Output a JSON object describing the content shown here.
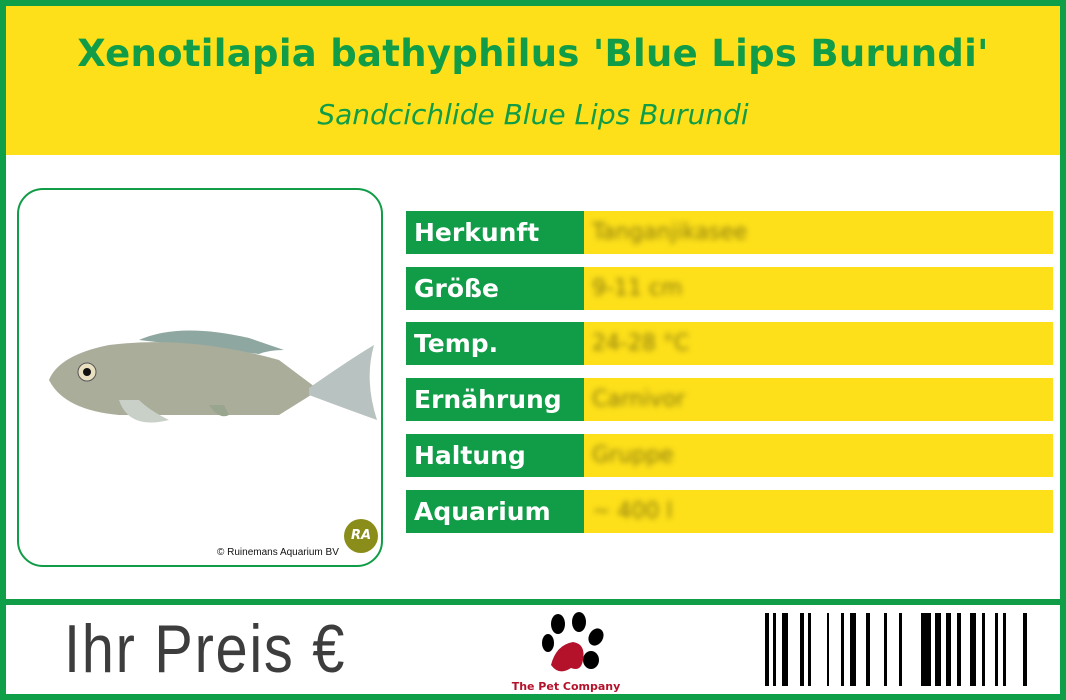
{
  "header": {
    "title": "Xenotilapia bathyphilus 'Blue Lips Burundi'",
    "subtitle": "Sandcichlide Blue Lips Burundi"
  },
  "photo": {
    "credit": "© Ruinemans Aquarium BV",
    "logo_text": "RA"
  },
  "specs": [
    {
      "label": "Herkunft",
      "value": "Tanganjikasee"
    },
    {
      "label": "Größe",
      "value": "9-11 cm"
    },
    {
      "label": "Temp.",
      "value": "24-28 °C"
    },
    {
      "label": "Ernährung",
      "value": "Carnivor"
    },
    {
      "label": "Haltung",
      "value": "Gruppe"
    },
    {
      "label": "Aquarium",
      "value": "~ 400 l"
    }
  ],
  "footer": {
    "price_label": "Ihr Preis €",
    "brand": "The Pet Company"
  },
  "colors": {
    "green": "#119c47",
    "yellow": "#fde01a",
    "brand_red": "#b3122a"
  }
}
